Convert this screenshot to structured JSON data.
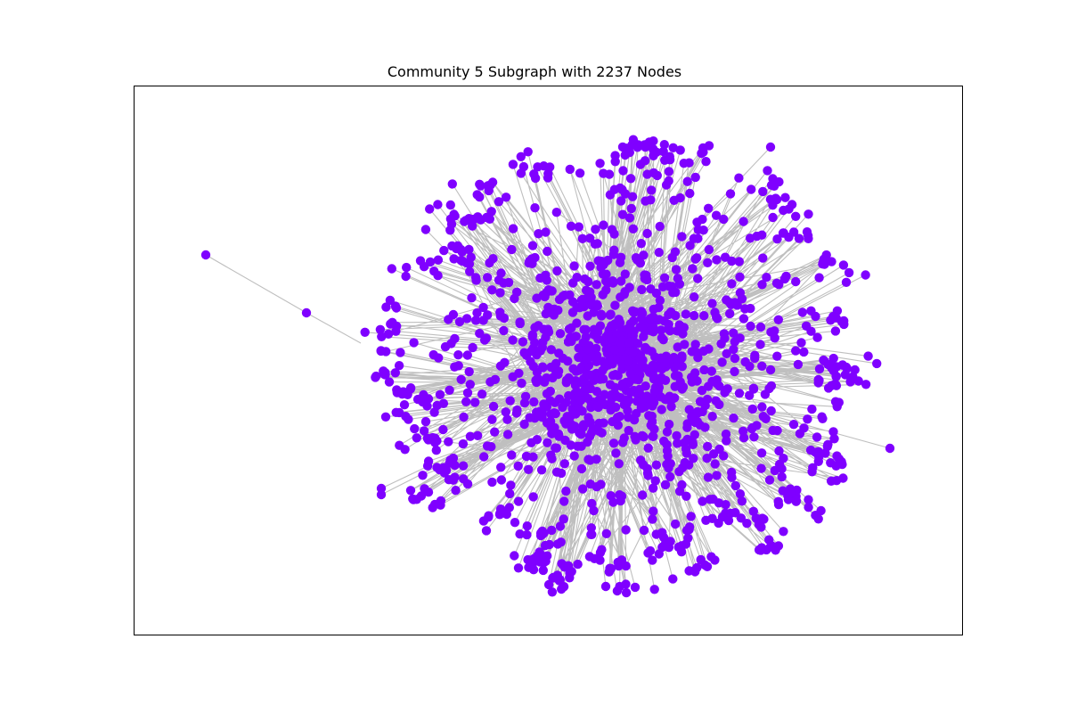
{
  "figure": {
    "title": "Community 5 Subgraph with 2237 Nodes"
  },
  "graph": {
    "node_color": "#7f00ff",
    "edge_color": "#808080",
    "node_count": 2237,
    "frame_visible": true,
    "axis_ticks_visible": false
  }
}
